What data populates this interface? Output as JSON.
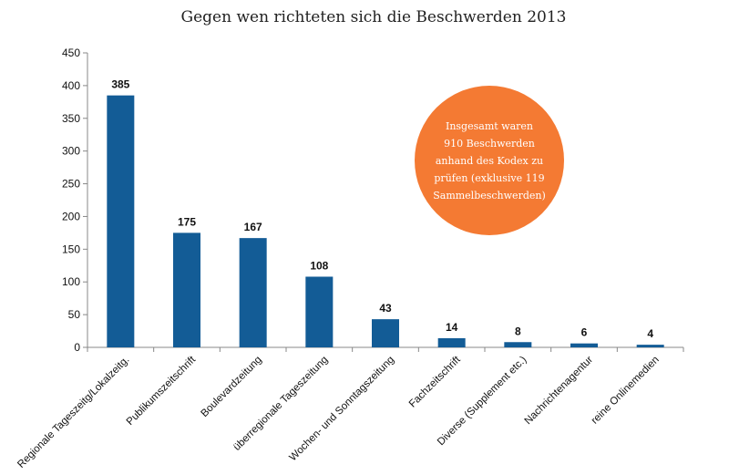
{
  "chart_data": {
    "type": "bar",
    "title": "Gegen wen richteten sich die Beschwerden 2013",
    "categories": [
      "Regionale Tageszeitg/Lokalzeitg.",
      "Publikumszeitschrift",
      "Boulevardzeitung",
      "überregionale Tageszeitung",
      "Wochen- und Sonntagszeitung",
      "Fachzeitschrift",
      "Diverse (Supplement etc.)",
      "Nachrichtenagentur",
      "reine Onlinemedien"
    ],
    "values": [
      385,
      175,
      167,
      108,
      43,
      14,
      8,
      6,
      4
    ],
    "yticks": [
      "0",
      "50",
      "100",
      "150",
      "200",
      "250",
      "300",
      "350",
      "400",
      "450"
    ],
    "ylim": [
      0,
      450
    ],
    "xlabel": "",
    "ylabel": "",
    "grid": false,
    "legend": "none",
    "bar_color": "#135C96",
    "annotation": {
      "lines": [
        "Insgesamt waren",
        "910 Beschwerden",
        "anhand des Kodex zu",
        "prüfen (exklusive 119",
        "Sammelbeschwerden)"
      ],
      "color": "#F47A33"
    }
  }
}
